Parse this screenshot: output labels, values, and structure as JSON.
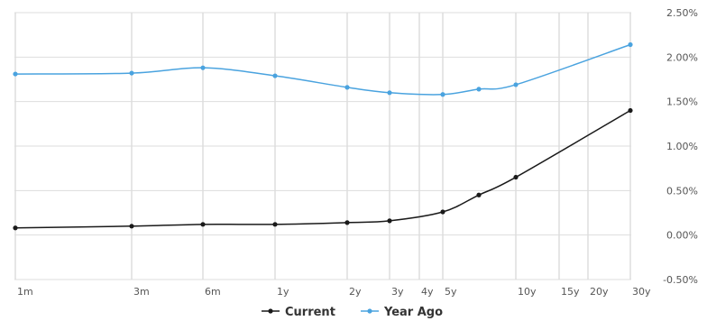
{
  "chart_data": {
    "type": "line",
    "title": "",
    "xlabel": "",
    "ylabel": "",
    "x_ticks": [
      "1m",
      "3m",
      "6m",
      "1y",
      "2y",
      "3y",
      "4y",
      "5y",
      "10y",
      "15y",
      "20y",
      "30y"
    ],
    "y_ticks": [
      "2.50%",
      "2.00%",
      "1.50%",
      "1.00%",
      "0.50%",
      "0.00%",
      "-0.50%"
    ],
    "ylim": [
      -0.5,
      2.5
    ],
    "grid": true,
    "legend_position": "bottom-center",
    "series": [
      {
        "name": "Current",
        "color": "#1a1a1a",
        "points": [
          {
            "x": "1m",
            "y": 0.08
          },
          {
            "x": "3m",
            "y": 0.1
          },
          {
            "x": "6m",
            "y": 0.12
          },
          {
            "x": "1y",
            "y": 0.12
          },
          {
            "x": "2y",
            "y": 0.14
          },
          {
            "x": "3y",
            "y": 0.16
          },
          {
            "x": "5y",
            "y": 0.26
          },
          {
            "x": "7y",
            "y": 0.45
          },
          {
            "x": "10y",
            "y": 0.65
          },
          {
            "x": "30y",
            "y": 1.4
          }
        ]
      },
      {
        "name": "Year Ago",
        "color": "#4aa3df",
        "points": [
          {
            "x": "1m",
            "y": 1.81
          },
          {
            "x": "3m",
            "y": 1.82
          },
          {
            "x": "6m",
            "y": 1.88
          },
          {
            "x": "1y",
            "y": 1.79
          },
          {
            "x": "2y",
            "y": 1.66
          },
          {
            "x": "3y",
            "y": 1.6
          },
          {
            "x": "5y",
            "y": 1.58
          },
          {
            "x": "7y",
            "y": 1.64
          },
          {
            "x": "10y",
            "y": 1.69
          },
          {
            "x": "30y",
            "y": 2.14
          }
        ]
      }
    ]
  }
}
